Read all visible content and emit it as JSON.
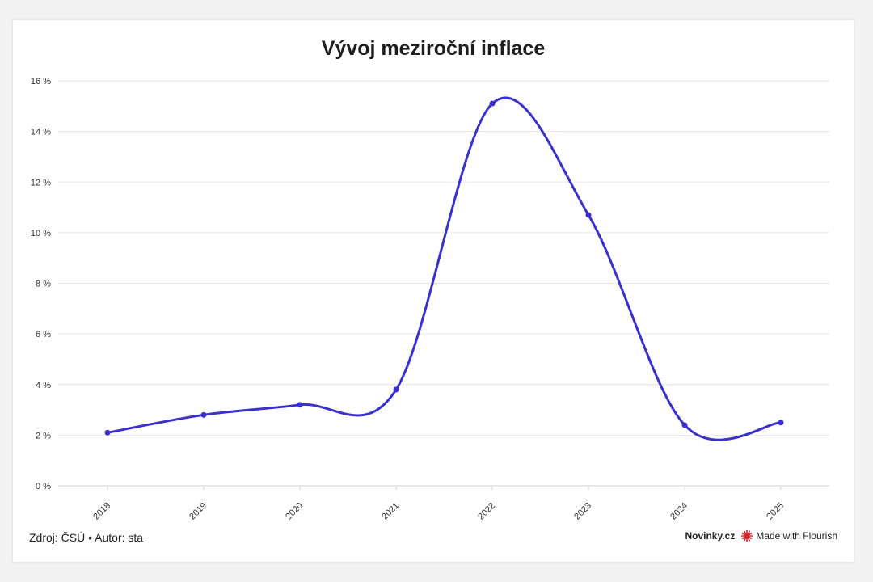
{
  "chart_data": {
    "type": "line",
    "title": "Vývoj meziroční inflace",
    "xlabel": "",
    "ylabel": "",
    "x": [
      "2018",
      "2019",
      "2020",
      "2021",
      "2022",
      "2023",
      "2024",
      "2025"
    ],
    "series": [
      {
        "values": [
          2.1,
          2.8,
          3.2,
          3.8,
          15.1,
          10.7,
          2.4,
          2.5
        ]
      }
    ],
    "ylim": [
      0,
      16
    ],
    "yticks": [
      0,
      2,
      4,
      6,
      8,
      10,
      12,
      14,
      16
    ],
    "ytick_labels": [
      "0 %",
      "2 %",
      "4 %",
      "6 %",
      "8 %",
      "10 %",
      "12 %",
      "14 %",
      "16 %"
    ],
    "grid": true,
    "line_color": "#3a30d0"
  },
  "footer": {
    "source": "Zdroj: ČSÚ • Autor: sta",
    "brand": "Novinky.cz",
    "made_with": "Made with Flourish"
  },
  "icons": {
    "flourish": "flourish-star-icon"
  },
  "colors": {
    "flourish_icon": "#d4232a",
    "grid": "#e6e6e6",
    "text": "#333333"
  }
}
